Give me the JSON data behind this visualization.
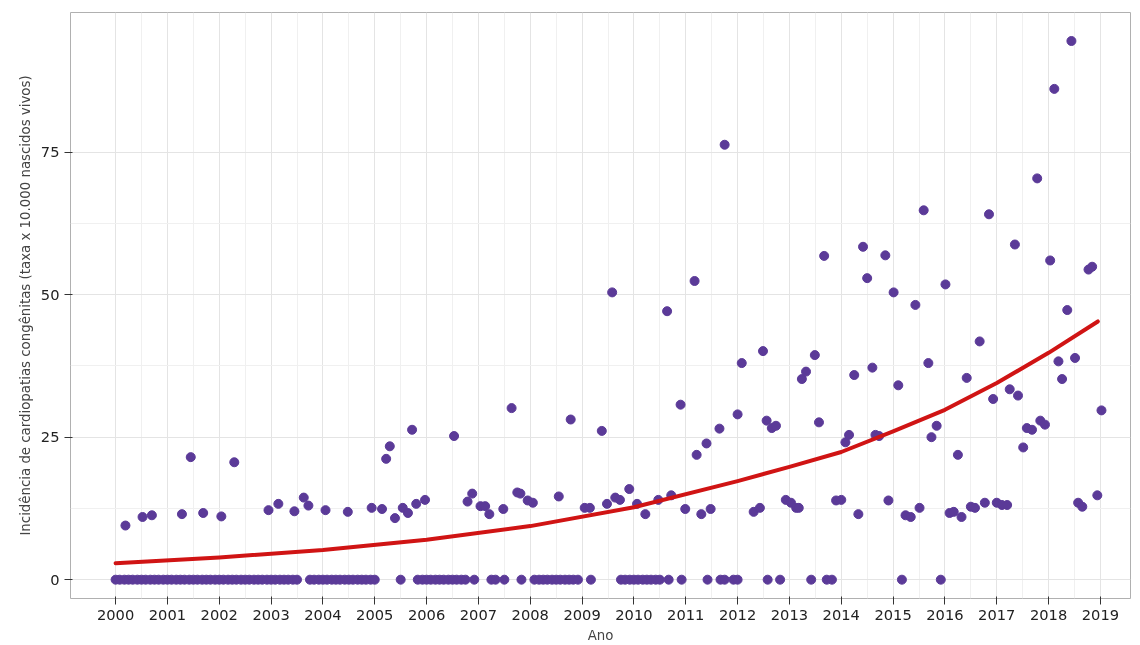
{
  "chart_data": {
    "type": "scatter",
    "xlabel": "Ano",
    "ylabel": "Incidência de cardiopatias congênitas (taxa x 10.000 nascidos vivos)",
    "xlim": [
      1999.13,
      2019.58
    ],
    "ylim": [
      -3.3,
      99.5
    ],
    "xticks": [
      2000,
      2001,
      2002,
      2003,
      2004,
      2005,
      2006,
      2007,
      2008,
      2009,
      2010,
      2011,
      2012,
      2013,
      2014,
      2015,
      2016,
      2017,
      2018,
      2019
    ],
    "yticks": [
      0,
      25,
      50,
      75
    ],
    "grid": true,
    "marker": "circle",
    "series": [
      {
        "color": "#5b3a98",
        "x": [
          2000.19,
          2000.52,
          2000.7,
          2001.28,
          2001.45,
          2001.69,
          2002.04,
          2002.29,
          2002.95,
          2003.14,
          2003.45,
          2003.63,
          2003.72,
          2004.05,
          2004.48,
          2004.94,
          2005.14,
          2005.22,
          2005.29,
          2005.39,
          2005.54,
          2005.64,
          2005.72,
          2005.8,
          2005.97,
          2006.53,
          2006.79,
          2006.88,
          2007.04,
          2007.13,
          2007.21,
          2007.48,
          2007.64,
          2007.75,
          2007.81,
          2007.95,
          2008.05,
          2008.55,
          2008.78,
          2009.05,
          2009.15,
          2009.38,
          2009.48,
          2009.58,
          2009.64,
          2009.73,
          2009.91,
          2010.06,
          2010.22,
          2010.47,
          2010.64,
          2010.72,
          2010.9,
          2010.99,
          2011.17,
          2011.21,
          2011.3,
          2011.4,
          2011.48,
          2011.65,
          2011.75,
          2012.0,
          2012.08,
          2012.31,
          2012.43,
          2012.49,
          2012.56,
          2012.66,
          2012.74,
          2012.93,
          2013.03,
          2013.13,
          2013.18,
          2013.24,
          2013.32,
          2013.49,
          2013.57,
          2013.67,
          2013.9,
          2014.0,
          2014.08,
          2014.15,
          2014.25,
          2014.33,
          2014.42,
          2014.5,
          2014.6,
          2014.66,
          2014.73,
          2014.85,
          2014.91,
          2015.01,
          2015.1,
          2015.24,
          2015.34,
          2015.43,
          2015.51,
          2015.59,
          2015.68,
          2015.74,
          2015.84,
          2016.01,
          2016.09,
          2016.17,
          2016.25,
          2016.32,
          2016.42,
          2016.5,
          2016.58,
          2016.67,
          2016.77,
          2016.85,
          2016.93,
          2017.0,
          2017.1,
          2017.2,
          2017.25,
          2017.35,
          2017.41,
          2017.51,
          2017.58,
          2017.68,
          2017.78,
          2017.84,
          2017.93,
          2018.03,
          2018.11,
          2018.19,
          2018.26,
          2018.36,
          2018.44,
          2018.51,
          2018.57,
          2018.65,
          2018.77,
          2018.84,
          2018.94,
          2019.02
        ],
        "values": [
          9.5,
          11,
          11.3,
          11.5,
          21.5,
          11.7,
          11.1,
          20.6,
          12.2,
          13.3,
          12,
          14.4,
          13,
          12.2,
          11.9,
          12.6,
          12.4,
          21.2,
          23.4,
          10.8,
          12.6,
          11.7,
          26.3,
          13.3,
          14,
          25.2,
          13.7,
          15.1,
          12.9,
          12.9,
          11.5,
          12.4,
          30.1,
          15.3,
          15.1,
          13.9,
          13.5,
          14.6,
          28.1,
          12.6,
          12.6,
          26.1,
          13.3,
          50.4,
          14.4,
          14,
          15.9,
          13.3,
          11.5,
          14,
          47.1,
          14.8,
          30.7,
          12.4,
          52.4,
          21.9,
          11.5,
          23.9,
          12.4,
          26.5,
          76.3,
          29,
          38,
          11.9,
          12.6,
          40.1,
          27.9,
          26.6,
          27,
          14,
          13.5,
          12.6,
          12.6,
          35.2,
          36.5,
          39.4,
          27.6,
          56.8,
          13.9,
          14,
          24.1,
          25.4,
          35.9,
          11.5,
          58.4,
          52.9,
          37.2,
          25.4,
          25.2,
          56.9,
          13.9,
          50.4,
          34.1,
          11.3,
          11,
          48.2,
          12.6,
          64.8,
          38,
          25,
          27,
          51.8,
          11.7,
          11.9,
          21.9,
          11,
          35.4,
          12.8,
          12.6,
          41.8,
          13.5,
          64.1,
          31.7,
          13.5,
          13.1,
          13.1,
          33.4,
          58.8,
          32.3,
          23.2,
          26.6,
          26.3,
          70.4,
          27.9,
          27.2,
          56,
          86.1,
          38.3,
          35.2,
          47.3,
          94.5,
          38.9,
          13.5,
          12.8,
          54.4,
          54.9,
          14.8,
          29.7
        ]
      },
      {
        "color": "#5b3a98",
        "x": [
          2000.0,
          2000.08,
          2000.17,
          2000.25,
          2000.33,
          2000.42,
          2000.5,
          2000.58,
          2000.67,
          2000.75,
          2000.83,
          2000.92,
          2001.0,
          2001.08,
          2001.17,
          2001.25,
          2001.33,
          2001.42,
          2001.5,
          2001.58,
          2001.67,
          2001.75,
          2001.83,
          2001.92,
          2002.0,
          2002.08,
          2002.17,
          2002.25,
          2002.33,
          2002.42,
          2002.5,
          2002.58,
          2002.67,
          2002.75,
          2002.83,
          2002.92,
          2003.0,
          2003.08,
          2003.17,
          2003.25,
          2003.33,
          2003.42,
          2003.5,
          2003.75,
          2003.83,
          2003.92,
          2004.0,
          2004.08,
          2004.17,
          2004.25,
          2004.33,
          2004.42,
          2004.5,
          2004.58,
          2004.67,
          2004.75,
          2004.83,
          2004.92,
          2005.0,
          2005.5,
          2005.83,
          2005.92,
          2006.0,
          2006.08,
          2006.17,
          2006.25,
          2006.33,
          2006.42,
          2006.5,
          2006.58,
          2006.67,
          2006.75,
          2006.92,
          2007.25,
          2007.33,
          2007.5,
          2007.83,
          2008.08,
          2008.17,
          2008.25,
          2008.33,
          2008.42,
          2008.5,
          2008.58,
          2008.67,
          2008.75,
          2008.83,
          2008.92,
          2009.17,
          2009.75,
          2009.83,
          2009.92,
          2010.0,
          2010.08,
          2010.17,
          2010.25,
          2010.33,
          2010.42,
          2010.5,
          2010.67,
          2010.92,
          2011.42,
          2011.67,
          2011.75,
          2011.92,
          2012.0,
          2012.58,
          2012.82,
          2013.42,
          2013.72,
          2013.82,
          2015.17,
          2015.92
        ],
        "values": [
          0,
          0,
          0,
          0,
          0,
          0,
          0,
          0,
          0,
          0,
          0,
          0,
          0,
          0,
          0,
          0,
          0,
          0,
          0,
          0,
          0,
          0,
          0,
          0,
          0,
          0,
          0,
          0,
          0,
          0,
          0,
          0,
          0,
          0,
          0,
          0,
          0,
          0,
          0,
          0,
          0,
          0,
          0,
          0,
          0,
          0,
          0,
          0,
          0,
          0,
          0,
          0,
          0,
          0,
          0,
          0,
          0,
          0,
          0,
          0,
          0,
          0,
          0,
          0,
          0,
          0,
          0,
          0,
          0,
          0,
          0,
          0,
          0,
          0,
          0,
          0,
          0,
          0,
          0,
          0,
          0,
          0,
          0,
          0,
          0,
          0,
          0,
          0,
          0,
          0,
          0,
          0,
          0,
          0,
          0,
          0,
          0,
          0,
          0,
          0,
          0,
          0,
          0,
          0,
          0,
          0,
          0,
          0,
          0,
          0,
          0,
          0,
          0
        ]
      },
      {
        "type": "line",
        "marker": "none",
        "color": "#d01414",
        "x": [
          2000,
          2002,
          2004,
          2006,
          2008,
          2010,
          2012,
          2013,
          2014,
          2015,
          2016,
          2017,
          2018,
          2018.95
        ],
        "values": [
          2.9,
          3.9,
          5.2,
          7,
          9.4,
          12.7,
          17.3,
          19.8,
          22.4,
          26,
          29.8,
          34.5,
          39.8,
          45.3
        ]
      }
    ]
  }
}
